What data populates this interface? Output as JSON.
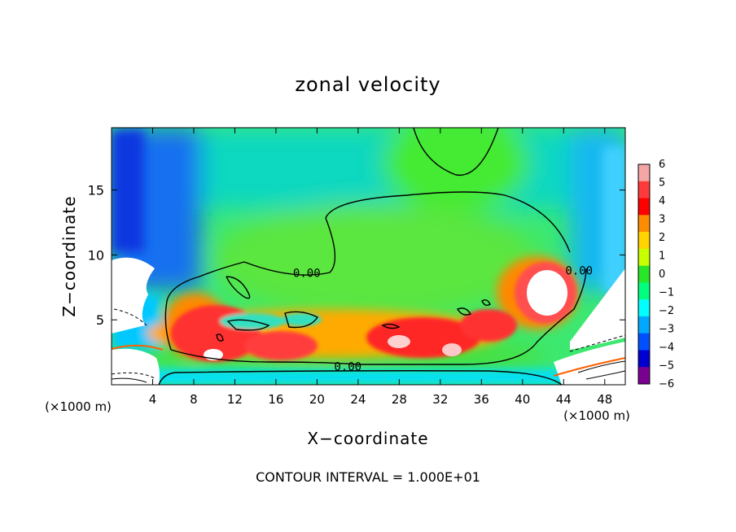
{
  "chart_data": {
    "type": "heatmap",
    "title": "zonal velocity",
    "xlabel": "X−coordinate",
    "ylabel": "Z−coordinate",
    "x_unit": "(×1000 m)",
    "xlim": [
      0,
      50
    ],
    "ylim": [
      0,
      19.8
    ],
    "x_ticks": [
      4,
      8,
      12,
      16,
      20,
      24,
      28,
      32,
      36,
      40,
      44,
      48
    ],
    "y_ticks": [
      5,
      10,
      15
    ],
    "colorbar": {
      "levels": [
        6,
        5,
        4,
        3,
        2,
        1,
        0,
        -1,
        -2,
        -3,
        -4,
        -5,
        -6
      ],
      "labels": [
        "6",
        "5",
        "4",
        "3",
        "2",
        "1",
        "0",
        "−1",
        "−2",
        "−3",
        "−4",
        "−5",
        "−6"
      ],
      "colors": [
        "#f4a6a6",
        "#ff3a3a",
        "#ff0000",
        "#ff8c00",
        "#ffd400",
        "#c8ff00",
        "#28e628",
        "#00ff7f",
        "#00ffff",
        "#00a8ff",
        "#0050ff",
        "#0000d0",
        "#7a0090"
      ]
    },
    "contour_labels": [
      {
        "text": "0.00",
        "x": 19,
        "z": 8.6
      },
      {
        "text": "0.00",
        "x": 23,
        "z": 1.4
      },
      {
        "text": "0.00",
        "x": 45.5,
        "z": 8.8
      }
    ],
    "annotation": "CONTOUR INTERVAL = 1.000E+01"
  }
}
